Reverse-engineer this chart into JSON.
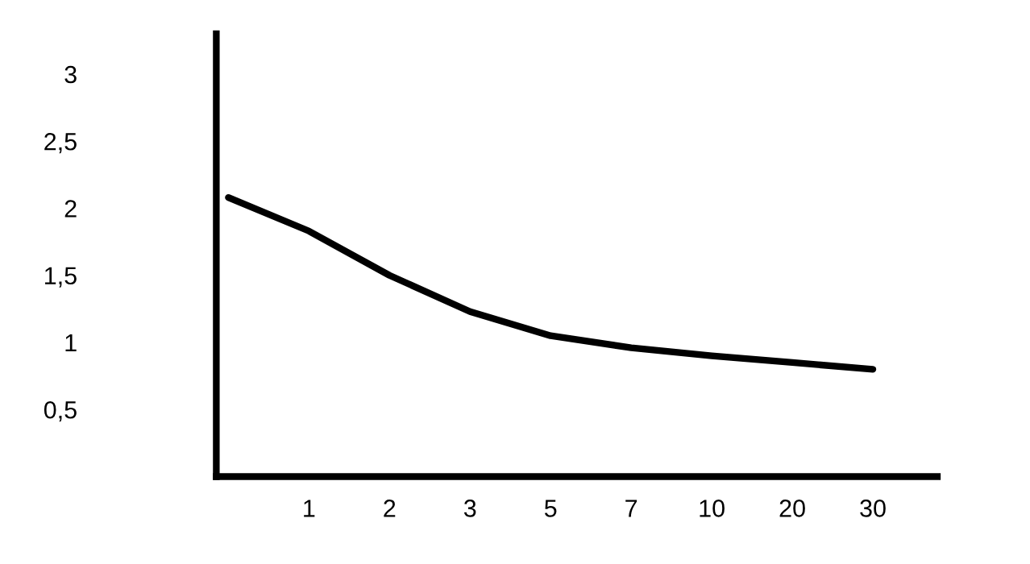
{
  "chart_data": {
    "type": "line",
    "categories": [
      null,
      "1",
      "2",
      "3",
      "5",
      "7",
      "10",
      "20",
      "30"
    ],
    "series": [
      {
        "color": "#000000",
        "values": [
          2.08,
          1.83,
          1.5,
          1.23,
          1.05,
          0.96,
          0.9,
          0.85,
          0.8
        ]
      }
    ],
    "ylim": [
      0,
      3.3
    ],
    "yticks": [
      {
        "value": 0.5,
        "label": "0,5"
      },
      1,
      {
        "value": 1.5,
        "label": "1,5"
      },
      2,
      {
        "value": 2.5,
        "label": "2,5"
      },
      3
    ],
    "grid": false,
    "marker": "none",
    "line_style": "solid"
  }
}
